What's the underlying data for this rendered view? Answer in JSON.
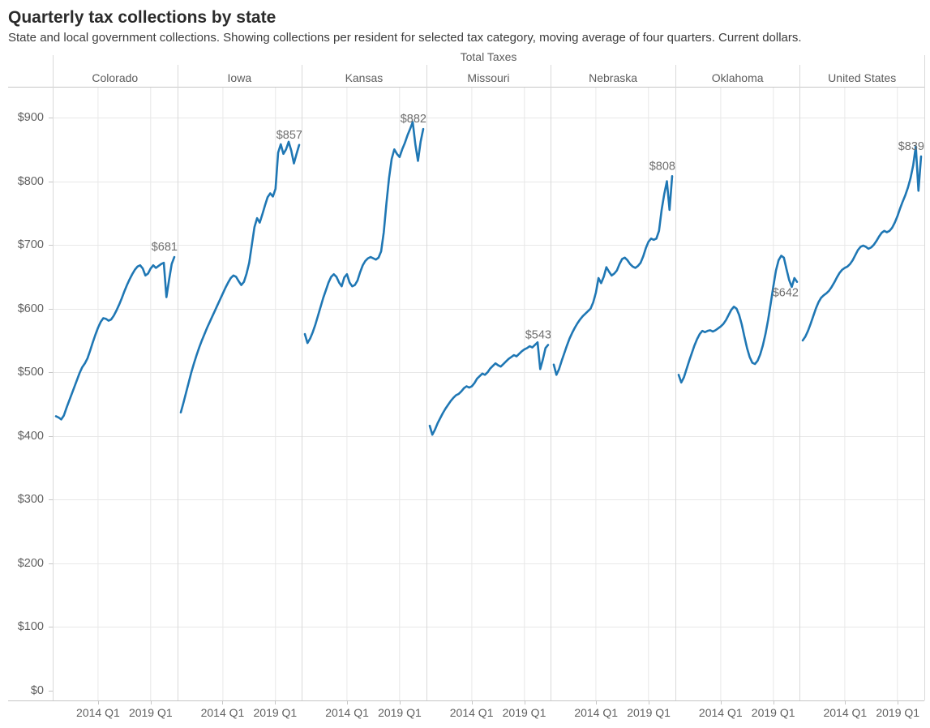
{
  "title": "Quarterly tax collections by state",
  "subtitle": "State and local government collections. Showing collections per resident for selected tax category, moving average of four quarters. Current dollars.",
  "chart_data": {
    "type": "line",
    "group_header": "Total Taxes",
    "x_domain": [
      "2010 Q1",
      "2021 Q2"
    ],
    "x_tick_labels": [
      "2014 Q1",
      "2019 Q1"
    ],
    "x_tick_indices": [
      16,
      36
    ],
    "y_axis": {
      "ticks": [
        "$900",
        "$800",
        "$700",
        "$600",
        "$500",
        "$400",
        "$300",
        "$200",
        "$100",
        "$0"
      ],
      "tick_values": [
        900,
        800,
        700,
        600,
        500,
        400,
        300,
        200,
        100,
        0
      ],
      "ylim": [
        0,
        960
      ]
    },
    "grid": true,
    "line_color": "#1f77b4",
    "label_color": "#6e6e6e",
    "series": [
      {
        "name": "Colorado",
        "end_label": "$681",
        "label_dx": 4,
        "label_dy": -8,
        "values": [
          431,
          429,
          426,
          432,
          444,
          455,
          466,
          477,
          488,
          499,
          508,
          514,
          522,
          534,
          547,
          559,
          570,
          579,
          585,
          584,
          581,
          583,
          589,
          597,
          606,
          616,
          627,
          637,
          646,
          654,
          661,
          666,
          668,
          663,
          652,
          655,
          663,
          668,
          664,
          667,
          670,
          672,
          618,
          645,
          670,
          681
        ]
      },
      {
        "name": "Iowa",
        "end_label": "$857",
        "label_dx": 4,
        "label_dy": -8,
        "values": [
          437,
          452,
          468,
          484,
          500,
          514,
          527,
          539,
          550,
          560,
          570,
          579,
          588,
          597,
          606,
          615,
          624,
          633,
          641,
          648,
          652,
          650,
          643,
          637,
          642,
          655,
          672,
          700,
          728,
          742,
          735,
          748,
          762,
          775,
          781,
          776,
          788,
          845,
          858,
          843,
          850,
          862,
          848,
          828,
          843,
          857
        ]
      },
      {
        "name": "Kansas",
        "end_label": "$882",
        "label_dx": 4,
        "label_dy": -8,
        "values": [
          560,
          546,
          553,
          563,
          575,
          589,
          603,
          617,
          629,
          641,
          650,
          654,
          650,
          641,
          635,
          649,
          654,
          641,
          635,
          637,
          644,
          657,
          668,
          675,
          679,
          681,
          679,
          677,
          680,
          690,
          720,
          765,
          805,
          835,
          850,
          843,
          838,
          850,
          860,
          872,
          882,
          893,
          858,
          832,
          862,
          882
        ]
      },
      {
        "name": "Missouri",
        "end_label": "$543",
        "label_dx": 4,
        "label_dy": -8,
        "values": [
          416,
          402,
          410,
          420,
          428,
          436,
          443,
          449,
          455,
          460,
          464,
          466,
          470,
          475,
          478,
          476,
          478,
          483,
          490,
          494,
          498,
          496,
          500,
          506,
          510,
          514,
          511,
          509,
          513,
          517,
          521,
          524,
          527,
          525,
          529,
          533,
          536,
          538,
          541,
          539,
          543,
          547,
          505,
          520,
          538,
          543
        ]
      },
      {
        "name": "Nebraska",
        "end_label": "$808",
        "label_dx": 4,
        "label_dy": -8,
        "values": [
          512,
          496,
          505,
          518,
          530,
          542,
          553,
          562,
          570,
          577,
          583,
          588,
          592,
          596,
          600,
          610,
          625,
          648,
          640,
          650,
          665,
          658,
          652,
          655,
          660,
          670,
          678,
          680,
          676,
          670,
          666,
          664,
          667,
          672,
          682,
          695,
          705,
          710,
          708,
          710,
          722,
          755,
          780,
          800,
          755,
          808
        ]
      },
      {
        "name": "Oklahoma",
        "end_label": "$642",
        "label_dx": 2,
        "label_dy": 18,
        "values": [
          496,
          484,
          492,
          505,
          518,
          530,
          542,
          552,
          560,
          565,
          563,
          565,
          566,
          564,
          566,
          569,
          572,
          576,
          582,
          590,
          598,
          603,
          600,
          590,
          575,
          556,
          538,
          524,
          515,
          513,
          518,
          528,
          542,
          560,
          582,
          608,
          635,
          660,
          676,
          683,
          680,
          662,
          645,
          634,
          648,
          642
        ]
      },
      {
        "name": "United States",
        "end_label": "$839",
        "label_dx": 4,
        "label_dy": -8,
        "values": [
          550,
          556,
          565,
          576,
          588,
          600,
          610,
          617,
          621,
          624,
          628,
          634,
          641,
          649,
          656,
          661,
          664,
          666,
          670,
          676,
          684,
          692,
          697,
          699,
          697,
          694,
          696,
          700,
          706,
          713,
          719,
          722,
          720,
          722,
          727,
          735,
          745,
          757,
          768,
          778,
          790,
          805,
          825,
          855,
          785,
          839
        ]
      }
    ]
  }
}
